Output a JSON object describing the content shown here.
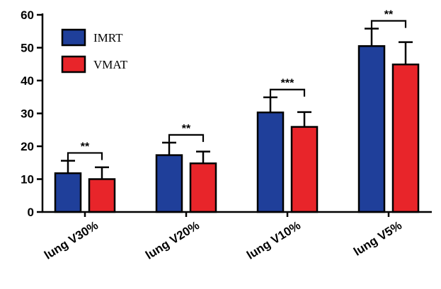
{
  "chart_data": {
    "type": "bar",
    "title": "",
    "xlabel": "",
    "ylabel": "",
    "ylim": [
      0,
      60
    ],
    "yticks": [
      0,
      10,
      20,
      30,
      40,
      50,
      60
    ],
    "categories": [
      "lung V30%",
      "lung V20%",
      "lung V10%",
      "lung V5%"
    ],
    "series": [
      {
        "name": "IMRT",
        "color": "#1f3f9a",
        "values": [
          11.8,
          17.3,
          30.3,
          50.5
        ],
        "errors": [
          3.8,
          3.8,
          4.6,
          5.3
        ]
      },
      {
        "name": "VMAT",
        "color": "#e8252a",
        "values": [
          10.0,
          14.8,
          25.9,
          44.9
        ],
        "errors": [
          3.6,
          3.6,
          4.5,
          6.8
        ]
      }
    ],
    "significance": [
      "**",
      "**",
      "***",
      "**"
    ],
    "legend": {
      "position": "top-left"
    },
    "grid": false
  }
}
